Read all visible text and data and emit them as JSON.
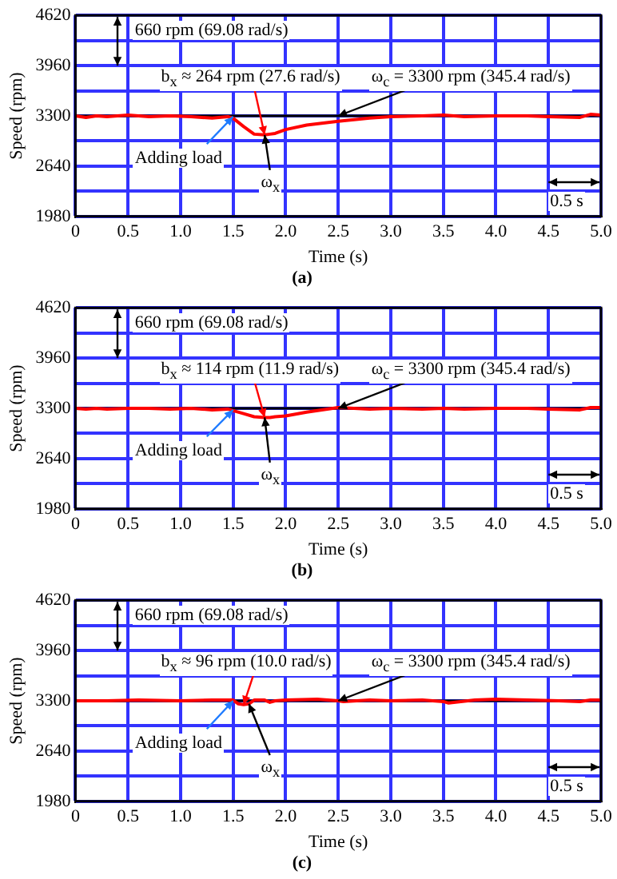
{
  "chart_data": [
    {
      "type": "line",
      "title": "(a)",
      "xlabel": "Time (s)",
      "ylabel": "Speed (rpm)",
      "grid": true,
      "xlim": [
        0,
        5
      ],
      "xticks": [
        0,
        0.5,
        {
          "value": 1,
          "label": "1.0"
        },
        1.5,
        {
          "value": 2,
          "label": "2.0"
        },
        2.5,
        {
          "value": 3,
          "label": "3.0"
        },
        3.5,
        {
          "value": 4,
          "label": "4.0"
        },
        4.5,
        {
          "value": 5,
          "label": "5.0"
        }
      ],
      "ylim": [
        1980,
        4620
      ],
      "yticks": [
        1980,
        {
          "value": 2310,
          "label": null
        },
        2640,
        {
          "value": 2970,
          "label": null
        },
        3300,
        {
          "value": 3630,
          "label": null
        },
        3960,
        {
          "value": 4290,
          "label": null
        },
        4620
      ],
      "ref_lines": [
        {
          "axis": "y",
          "value": 3300,
          "color": "#000000"
        }
      ],
      "annotations": [
        "660 rpm (69.08 rad/s)",
        {
          "text": "b$_{x}$ ≈ 264 rpm (27.6 rad/s)",
          "x": 1.8,
          "y": 3050
        },
        {
          "text": "ω$_{c}$ = 3300 rpm (345.4 rad/s)",
          "x": 2.5,
          "y": 3300
        },
        {
          "text": "Adding load",
          "x": 1.5,
          "y": 3290
        },
        {
          "text": "ω$_{x}$",
          "x": 1.8,
          "y": 3050
        },
        "0.5 s"
      ],
      "series": [
        {
          "color": "#ff0000",
          "x": [
            0,
            0.1,
            0.2,
            0.3,
            0.5,
            0.7,
            0.9,
            1.1,
            1.3,
            1.45,
            1.5,
            1.6,
            1.7,
            1.8,
            1.85,
            1.9,
            2.0,
            2.2,
            2.5,
            2.8,
            3.0,
            3.3,
            3.5,
            3.7,
            4.0,
            4.3,
            4.5,
            4.8,
            4.9,
            5.0
          ],
          "values": [
            3300,
            3280,
            3300,
            3290,
            3310,
            3290,
            3300,
            3290,
            3270,
            3290,
            3270,
            3160,
            3060,
            3050,
            3060,
            3070,
            3120,
            3180,
            3230,
            3270,
            3290,
            3300,
            3310,
            3290,
            3300,
            3300,
            3290,
            3280,
            3320,
            3310
          ]
        }
      ]
    },
    {
      "type": "line",
      "title": "(b)",
      "xlabel": "Time (s)",
      "ylabel": "Speed (rpm)",
      "grid": true,
      "xlim": [
        0,
        5
      ],
      "xticks": [
        0,
        0.5,
        {
          "value": 1,
          "label": "1.0"
        },
        1.5,
        {
          "value": 2,
          "label": "2.0"
        },
        2.5,
        {
          "value": 3,
          "label": "3.0"
        },
        3.5,
        {
          "value": 4,
          "label": "4.0"
        },
        4.5,
        {
          "value": 5,
          "label": "5.0"
        }
      ],
      "ylim": [
        1980,
        4620
      ],
      "yticks": [
        1980,
        {
          "value": 2310,
          "label": null
        },
        2640,
        {
          "value": 2970,
          "label": null
        },
        3300,
        {
          "value": 3630,
          "label": null
        },
        3960,
        {
          "value": 4290,
          "label": null
        },
        4620
      ],
      "ref_lines": [
        {
          "axis": "y",
          "value": 3300,
          "color": "#000000"
        }
      ],
      "annotations": [
        "660 rpm (69.08 rad/s)",
        {
          "text": "b$_{x}$ ≈ 114 rpm (11.9 rad/s)",
          "x": 1.8,
          "y": 3180
        },
        {
          "text": "ω$_{c}$ = 3300 rpm (345.4 rad/s)",
          "x": 2.5,
          "y": 3300
        },
        {
          "text": "Adding load",
          "x": 1.5,
          "y": 3280
        },
        {
          "text": "ω$_{x}$",
          "x": 1.8,
          "y": 3180
        },
        "0.5 s"
      ],
      "series": [
        {
          "color": "#ff0000",
          "x": [
            0,
            0.1,
            0.2,
            0.3,
            0.5,
            0.7,
            0.9,
            1.1,
            1.3,
            1.45,
            1.5,
            1.6,
            1.7,
            1.8,
            1.85,
            1.9,
            2.0,
            2.2,
            2.5,
            2.8,
            3.0,
            3.3,
            3.5,
            3.7,
            4.0,
            4.3,
            4.5,
            4.8,
            4.9,
            5.0
          ],
          "values": [
            3300,
            3290,
            3300,
            3290,
            3300,
            3300,
            3290,
            3300,
            3280,
            3290,
            3270,
            3230,
            3190,
            3180,
            3180,
            3190,
            3200,
            3250,
            3310,
            3290,
            3300,
            3290,
            3300,
            3290,
            3300,
            3300,
            3290,
            3280,
            3310,
            3310
          ]
        }
      ]
    },
    {
      "type": "line",
      "title": "(c)",
      "xlabel": "Time (s)",
      "ylabel": "Speed (rpm)",
      "grid": true,
      "xlim": [
        0,
        5
      ],
      "xticks": [
        0,
        0.5,
        {
          "value": 1,
          "label": "1.0"
        },
        1.5,
        {
          "value": 2,
          "label": "2.0"
        },
        2.5,
        {
          "value": 3,
          "label": "3.0"
        },
        3.5,
        {
          "value": 4,
          "label": "4.0"
        },
        4.5,
        {
          "value": 5,
          "label": "5.0"
        }
      ],
      "ylim": [
        1980,
        4620
      ],
      "yticks": [
        1980,
        {
          "value": 2310,
          "label": null
        },
        2640,
        {
          "value": 2970,
          "label": null
        },
        3300,
        {
          "value": 3630,
          "label": null
        },
        3960,
        {
          "value": 4290,
          "label": null
        },
        4620
      ],
      "ref_lines": [
        {
          "axis": "y",
          "value": 3300,
          "color": "#000000"
        }
      ],
      "annotations": [
        "660 rpm (69.08 rad/s)",
        {
          "text": "b$_{x}$ ≈ 96 rpm (10.0 rad/s)",
          "x": 1.6,
          "y": 3250
        },
        {
          "text": "ω$_{c}$ = 3300 rpm (345.4 rad/s)",
          "x": 2.5,
          "y": 3300
        },
        {
          "text": "Adding load",
          "x": 1.5,
          "y": 3300
        },
        {
          "text": "ω$_{x}$",
          "x": 1.65,
          "y": 3260
        },
        "0.5 s"
      ],
      "series": [
        {
          "color": "#ff0000",
          "x": [
            0,
            0.3,
            0.6,
            1.0,
            1.3,
            1.5,
            1.55,
            1.6,
            1.65,
            1.7,
            1.8,
            1.85,
            1.9,
            2.0,
            2.3,
            2.5,
            2.55,
            2.8,
            3.0,
            3.3,
            3.5,
            3.55,
            3.8,
            4.0,
            4.3,
            4.6,
            4.8,
            4.9,
            5.0
          ],
          "values": [
            3300,
            3300,
            3310,
            3300,
            3310,
            3310,
            3260,
            3250,
            3260,
            3310,
            3310,
            3280,
            3300,
            3310,
            3320,
            3300,
            3290,
            3310,
            3300,
            3310,
            3290,
            3270,
            3310,
            3320,
            3310,
            3300,
            3290,
            3310,
            3310
          ]
        }
      ]
    }
  ]
}
